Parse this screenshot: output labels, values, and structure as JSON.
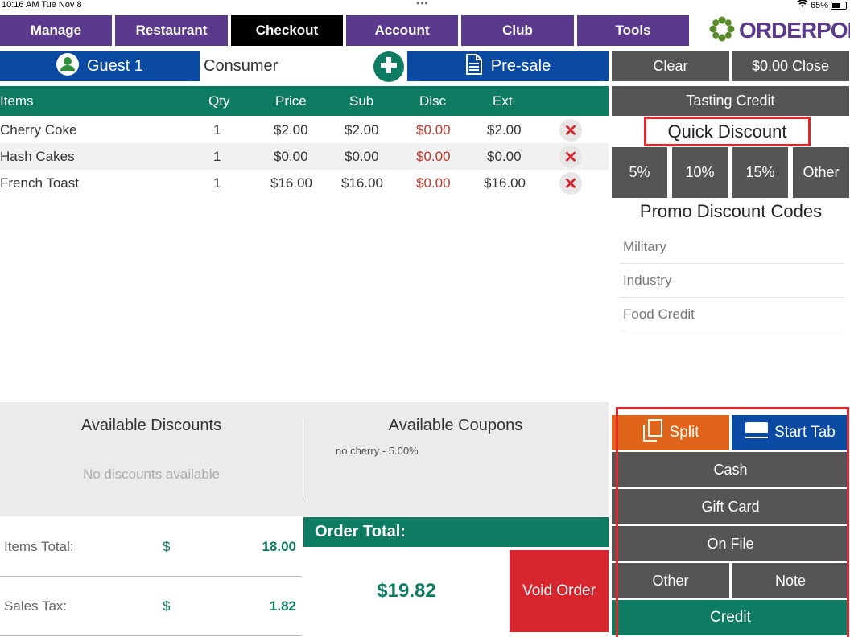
{
  "status_bar": {
    "time": "10:16 AM  Tue Nov 8",
    "dots": "•••",
    "battery": "65%",
    "battery_level": 0.65
  },
  "nav": {
    "tabs": [
      {
        "label": "Manage",
        "active": false
      },
      {
        "label": "Restaurant",
        "active": false
      },
      {
        "label": "Checkout",
        "active": true
      },
      {
        "label": "Account",
        "active": false
      },
      {
        "label": "Club",
        "active": false
      },
      {
        "label": "Tools",
        "active": false
      }
    ],
    "logo": "ORDERPORT"
  },
  "order_bar": {
    "guest_label": "Guest 1",
    "customer_type": "Consumer",
    "presale_label": "Pre-sale"
  },
  "actions": {
    "clear_label": "Clear",
    "close_label": "$0.00 Close",
    "tasting_credit_label": "Tasting Credit"
  },
  "items_table": {
    "headers": {
      "items": "Items",
      "qty": "Qty",
      "price": "Price",
      "sub": "Sub",
      "disc": "Disc",
      "ext": "Ext"
    },
    "rows": [
      {
        "name": "Cherry Coke",
        "qty": "1",
        "price": "$2.00",
        "sub": "$2.00",
        "disc": "$0.00",
        "ext": "$2.00"
      },
      {
        "name": "Hash Cakes",
        "qty": "1",
        "price": "$0.00",
        "sub": "$0.00",
        "disc": "$0.00",
        "ext": "$0.00"
      },
      {
        "name": "French Toast",
        "qty": "1",
        "price": "$16.00",
        "sub": "$16.00",
        "disc": "$0.00",
        "ext": "$16.00"
      }
    ]
  },
  "quick_discount": {
    "title": "Quick Discount",
    "options": [
      "5%",
      "10%",
      "15%",
      "Other"
    ]
  },
  "promo": {
    "title": "Promo Discount Codes",
    "codes": [
      "Military",
      "Industry",
      "Food Credit"
    ]
  },
  "discounts": {
    "title": "Available Discounts",
    "empty_text": "No discounts available"
  },
  "coupons": {
    "title": "Available Coupons",
    "items": [
      "no cherry - 5.00%"
    ]
  },
  "totals": {
    "items_total_label": "Items Total:",
    "items_total_currency": "$",
    "items_total_value": "18.00",
    "sales_tax_label": "Sales Tax:",
    "sales_tax_currency": "$",
    "sales_tax_value": "1.82",
    "order_total_label": "Order Total:",
    "order_total_value": "$19.82",
    "void_label": "Void Order"
  },
  "payment": {
    "split_label": "Split",
    "start_tab_label": "Start Tab",
    "cash_label": "Cash",
    "gift_card_label": "Gift Card",
    "on_file_label": "On File",
    "other_label": "Other",
    "note_label": "Note",
    "credit_label": "Credit"
  },
  "colors": {
    "nav_purple": "#5b3a8e",
    "active_black": "#000000",
    "blue": "#0b4aa2",
    "teal": "#0e7c62",
    "grey_button": "#555555",
    "red": "#d8262e",
    "orange": "#e0651a",
    "highlight_red": "#e3262b"
  }
}
